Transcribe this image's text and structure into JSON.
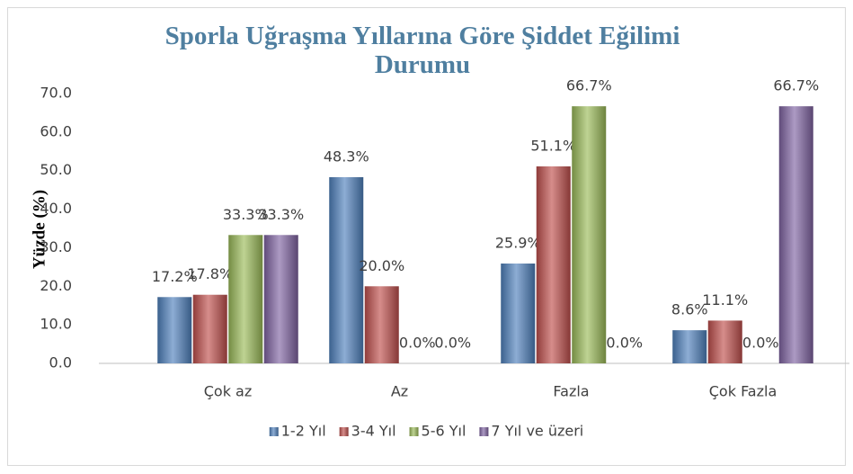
{
  "chart_data": {
    "type": "bar",
    "title": "Sporla Uğraşma Yıllarına Göre Şiddet Eğilimi Durumu",
    "y_label": "Yüzde (%)",
    "categories": [
      "Çok az",
      "Az",
      "Fazla",
      "Çok Fazla"
    ],
    "series": [
      {
        "name": "1-2 Yıl",
        "color": "#4f81bd",
        "values": [
          17.2,
          48.3,
          25.9,
          8.6
        ],
        "value_labels": [
          "17.2%",
          "48.3%",
          "25.9%",
          "8.6%"
        ]
      },
      {
        "name": "3-4 Yıl",
        "color": "#c0504d",
        "values": [
          17.8,
          20.0,
          51.1,
          11.1
        ],
        "value_labels": [
          "17.8%",
          "20.0%",
          "51.1%",
          "11.1%"
        ]
      },
      {
        "name": "5-6 Yıl",
        "color": "#9bbb59",
        "values": [
          33.3,
          0.0,
          66.7,
          0.0
        ],
        "value_labels": [
          "33.3%",
          "0.0%",
          "66.7%",
          "0.0%"
        ]
      },
      {
        "name": "7 Yıl ve üzeri",
        "color": "#8064a2",
        "values": [
          33.3,
          0.0,
          0.0,
          66.7
        ],
        "value_labels": [
          "33.3%",
          "0.0%",
          "0.0%",
          "66.7%"
        ]
      }
    ],
    "ylim": [
      0,
      70
    ],
    "yticks": [
      {
        "value": 0,
        "label": "0.0"
      },
      {
        "value": 10,
        "label": "10.0"
      },
      {
        "value": 20,
        "label": "20.0"
      },
      {
        "value": 30,
        "label": "30.0"
      },
      {
        "value": 40,
        "label": "40.0"
      },
      {
        "value": 50,
        "label": "50.0"
      },
      {
        "value": 60,
        "label": "60.0"
      },
      {
        "value": 70,
        "label": "70.0"
      }
    ],
    "grid": false,
    "legend": "bottom"
  }
}
